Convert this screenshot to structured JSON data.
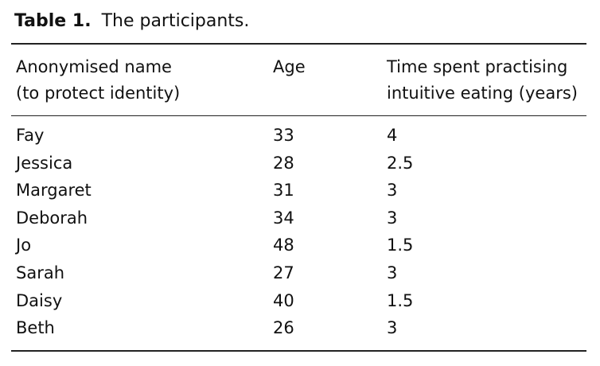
{
  "table": {
    "caption": {
      "label": "Table 1.",
      "text": "The participants."
    },
    "headers": [
      [
        "Anonymised name",
        "(to protect identity)"
      ],
      [
        "Age"
      ],
      [
        "Time spent practising",
        "intuitive eating (years)"
      ]
    ],
    "rows": [
      [
        "Fay",
        33,
        4
      ],
      [
        "Jessica",
        28,
        2.5
      ],
      [
        "Margaret",
        31,
        3
      ],
      [
        "Deborah",
        34,
        3
      ],
      [
        "Jo",
        48,
        1.5
      ],
      [
        "Sarah",
        27,
        3
      ],
      [
        "Daisy",
        40,
        1.5
      ],
      [
        "Beth",
        26,
        3
      ]
    ]
  }
}
